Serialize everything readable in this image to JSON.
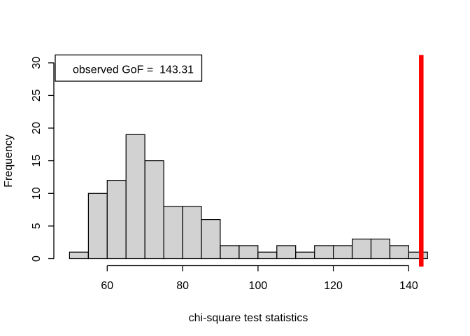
{
  "figure": {
    "background": "#ffffff",
    "legend": {
      "label": "observed GoF =  143.31",
      "position": "topleft"
    }
  },
  "chart_data": {
    "type": "bar",
    "subtype": "histogram",
    "title": "",
    "xlabel": "chi-square test statistics",
    "ylabel": "Frequency",
    "bin_edges": [
      50,
      55,
      60,
      65,
      70,
      75,
      80,
      85,
      90,
      95,
      100,
      105,
      110,
      115,
      120,
      125,
      130,
      135,
      140,
      145
    ],
    "frequencies": [
      1,
      10,
      12,
      19,
      15,
      8,
      8,
      6,
      2,
      2,
      1,
      2,
      1,
      2,
      2,
      3,
      3,
      2,
      1
    ],
    "x_ticks": [
      60,
      80,
      100,
      120,
      140
    ],
    "y_ticks": [
      0,
      5,
      10,
      15,
      20,
      25,
      30
    ],
    "xlim": [
      46.2,
      148.8
    ],
    "ylim": [
      -1.2,
      31.2
    ],
    "total_count": 100,
    "observed_value": 143.31,
    "annotation": "observed GoF =  143.31",
    "grid": false,
    "legend_position": "topleft",
    "colors": {
      "bar_fill": "#d2d2d2",
      "bar_border": "#000000",
      "observed_line": "#ff0000",
      "axis": "#000000",
      "text": "#000000"
    }
  }
}
